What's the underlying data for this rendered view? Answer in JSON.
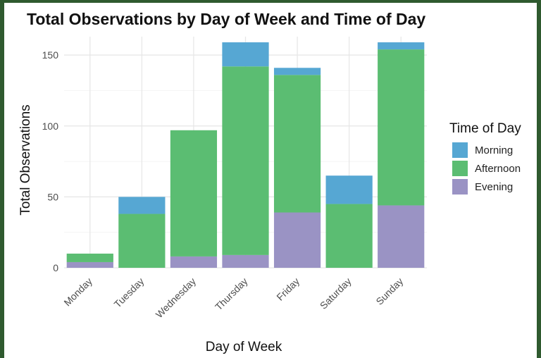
{
  "chart_data": {
    "type": "bar",
    "stacked": true,
    "title": "Total Observations by Day of Week and Time of Day",
    "xlabel": "Day of Week",
    "ylabel": "Total Observations",
    "ylim": [
      0,
      163
    ],
    "yticks": [
      0,
      50,
      100,
      150
    ],
    "grid": true,
    "legend_position": "right",
    "legend_title": "Time of Day",
    "categories": [
      "Monday",
      "Tuesday",
      "Wednesday",
      "Thursday",
      "Friday",
      "Saturday",
      "Sunday"
    ],
    "series": [
      {
        "name": "Evening",
        "color": "#9a93c4",
        "values": [
          4,
          0,
          8,
          9,
          39,
          0,
          44
        ]
      },
      {
        "name": "Afternoon",
        "color": "#5bbd72",
        "values": [
          6,
          38,
          89,
          133,
          97,
          45,
          110
        ]
      },
      {
        "name": "Morning",
        "color": "#56a7d3",
        "values": [
          0,
          12,
          0,
          17,
          5,
          20,
          5
        ]
      }
    ],
    "legend_order": [
      "Morning",
      "Afternoon",
      "Evening"
    ]
  }
}
